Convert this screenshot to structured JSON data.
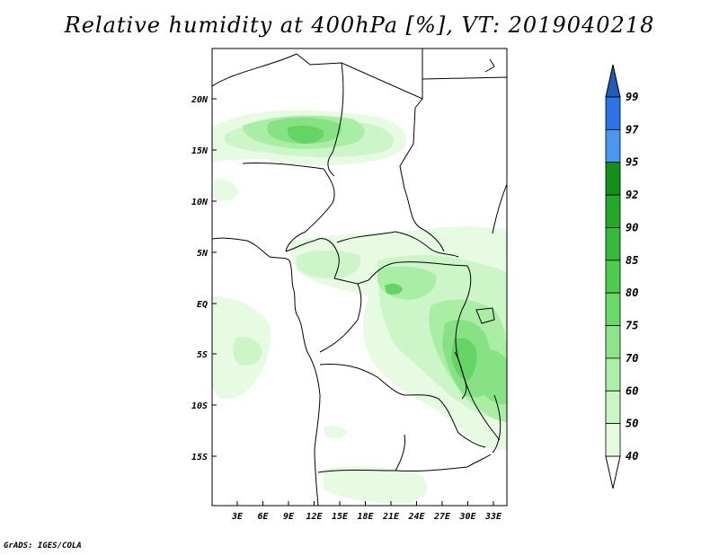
{
  "title": "Relative humidity at 400hPa [%], VT: 2019040218",
  "credit": "GrADS: IGES/COLA",
  "map": {
    "lat_ticks": [
      "20N",
      "15N",
      "10N",
      "5N",
      "EQ",
      "5S",
      "10S",
      "15S"
    ],
    "lon_ticks": [
      "3E",
      "6E",
      "9E",
      "12E",
      "15E",
      "18E",
      "21E",
      "24E",
      "27E",
      "30E",
      "33E"
    ]
  },
  "colorbar": {
    "labels": [
      "99",
      "97",
      "95",
      "92",
      "90",
      "85",
      "80",
      "75",
      "70",
      "60",
      "50",
      "40"
    ],
    "colors": [
      "#1e5ce0",
      "#2c72e8",
      "#4a96f0",
      "#11901a",
      "#22a82a",
      "#33bb3a",
      "#4ccc4e",
      "#68da68",
      "#8ce58a",
      "#aaf0a8",
      "#c8f7c4",
      "#e4fbe0"
    ],
    "top_arrow_color": "#1e5cb8",
    "bottom_arrow_color": "#ffffff"
  },
  "humidity_palette": {
    "l40": "#e6fbe2",
    "l50": "#ccf5c8",
    "l60": "#aaeea6",
    "l70": "#86e282",
    "l75": "#64d464"
  }
}
